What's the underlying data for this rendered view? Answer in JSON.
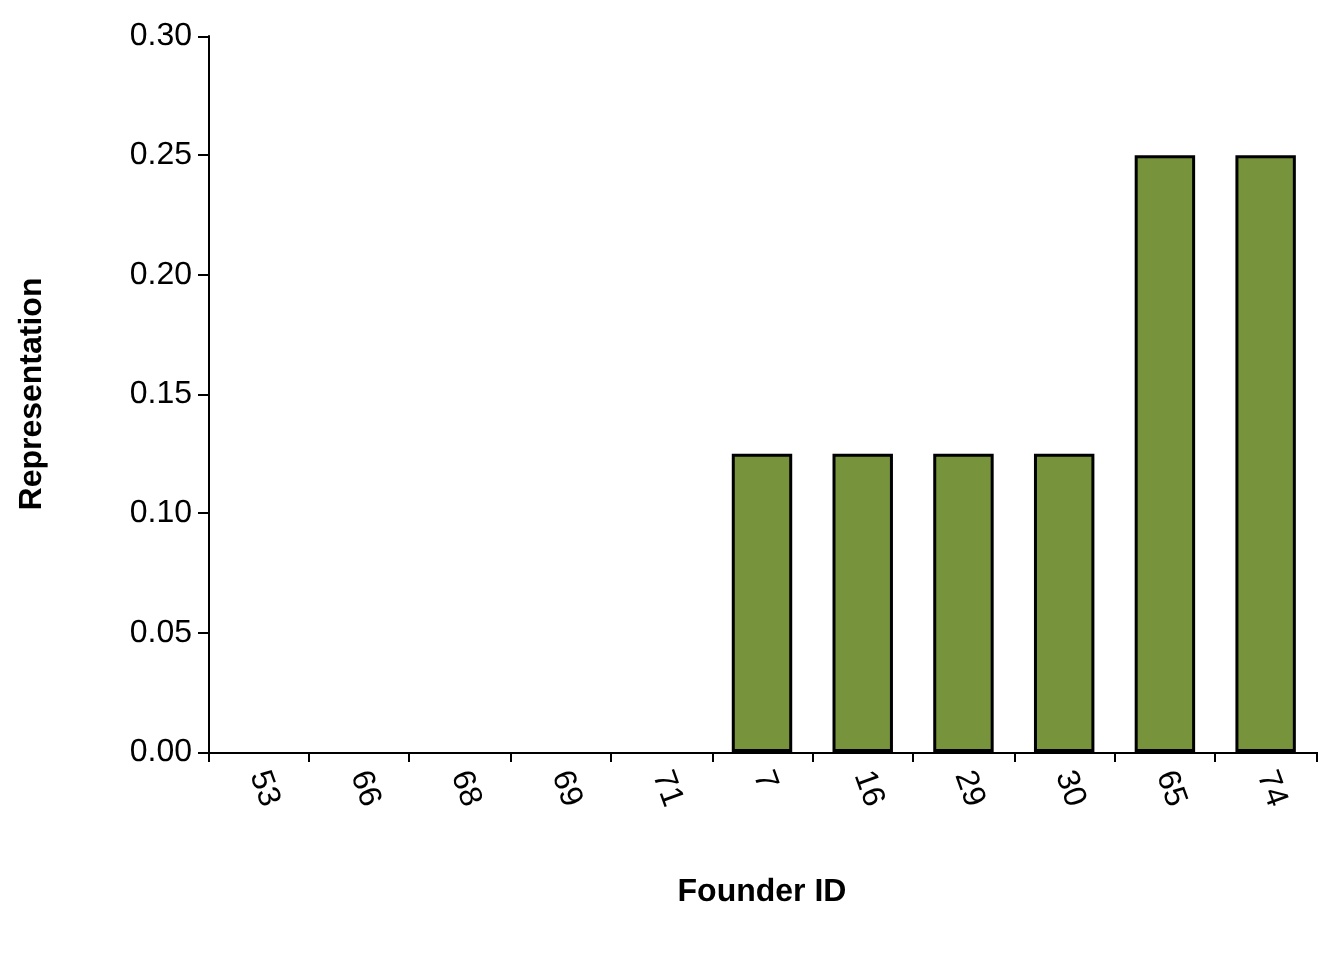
{
  "chart_data": {
    "type": "bar",
    "xlabel": "Founder ID",
    "ylabel": "Representation",
    "categories": [
      "53",
      "66",
      "68",
      "69",
      "71",
      "7",
      "16",
      "29",
      "30",
      "65",
      "74"
    ],
    "values": [
      0,
      0,
      0,
      0,
      0,
      0.125,
      0.125,
      0.125,
      0.125,
      0.25,
      0.25
    ],
    "color": "#77933c",
    "ylim": [
      0,
      0.3
    ],
    "yticks": [
      {
        "value": 0,
        "label": "0.00"
      },
      {
        "value": 0.05,
        "label": "0.05"
      },
      {
        "value": 0.1,
        "label": "0.10"
      },
      {
        "value": 0.15,
        "label": "0.15"
      },
      {
        "value": 0.2,
        "label": "0.20"
      },
      {
        "value": 0.25,
        "label": "0.25"
      },
      {
        "value": 0.3,
        "label": "0.30"
      }
    ]
  }
}
